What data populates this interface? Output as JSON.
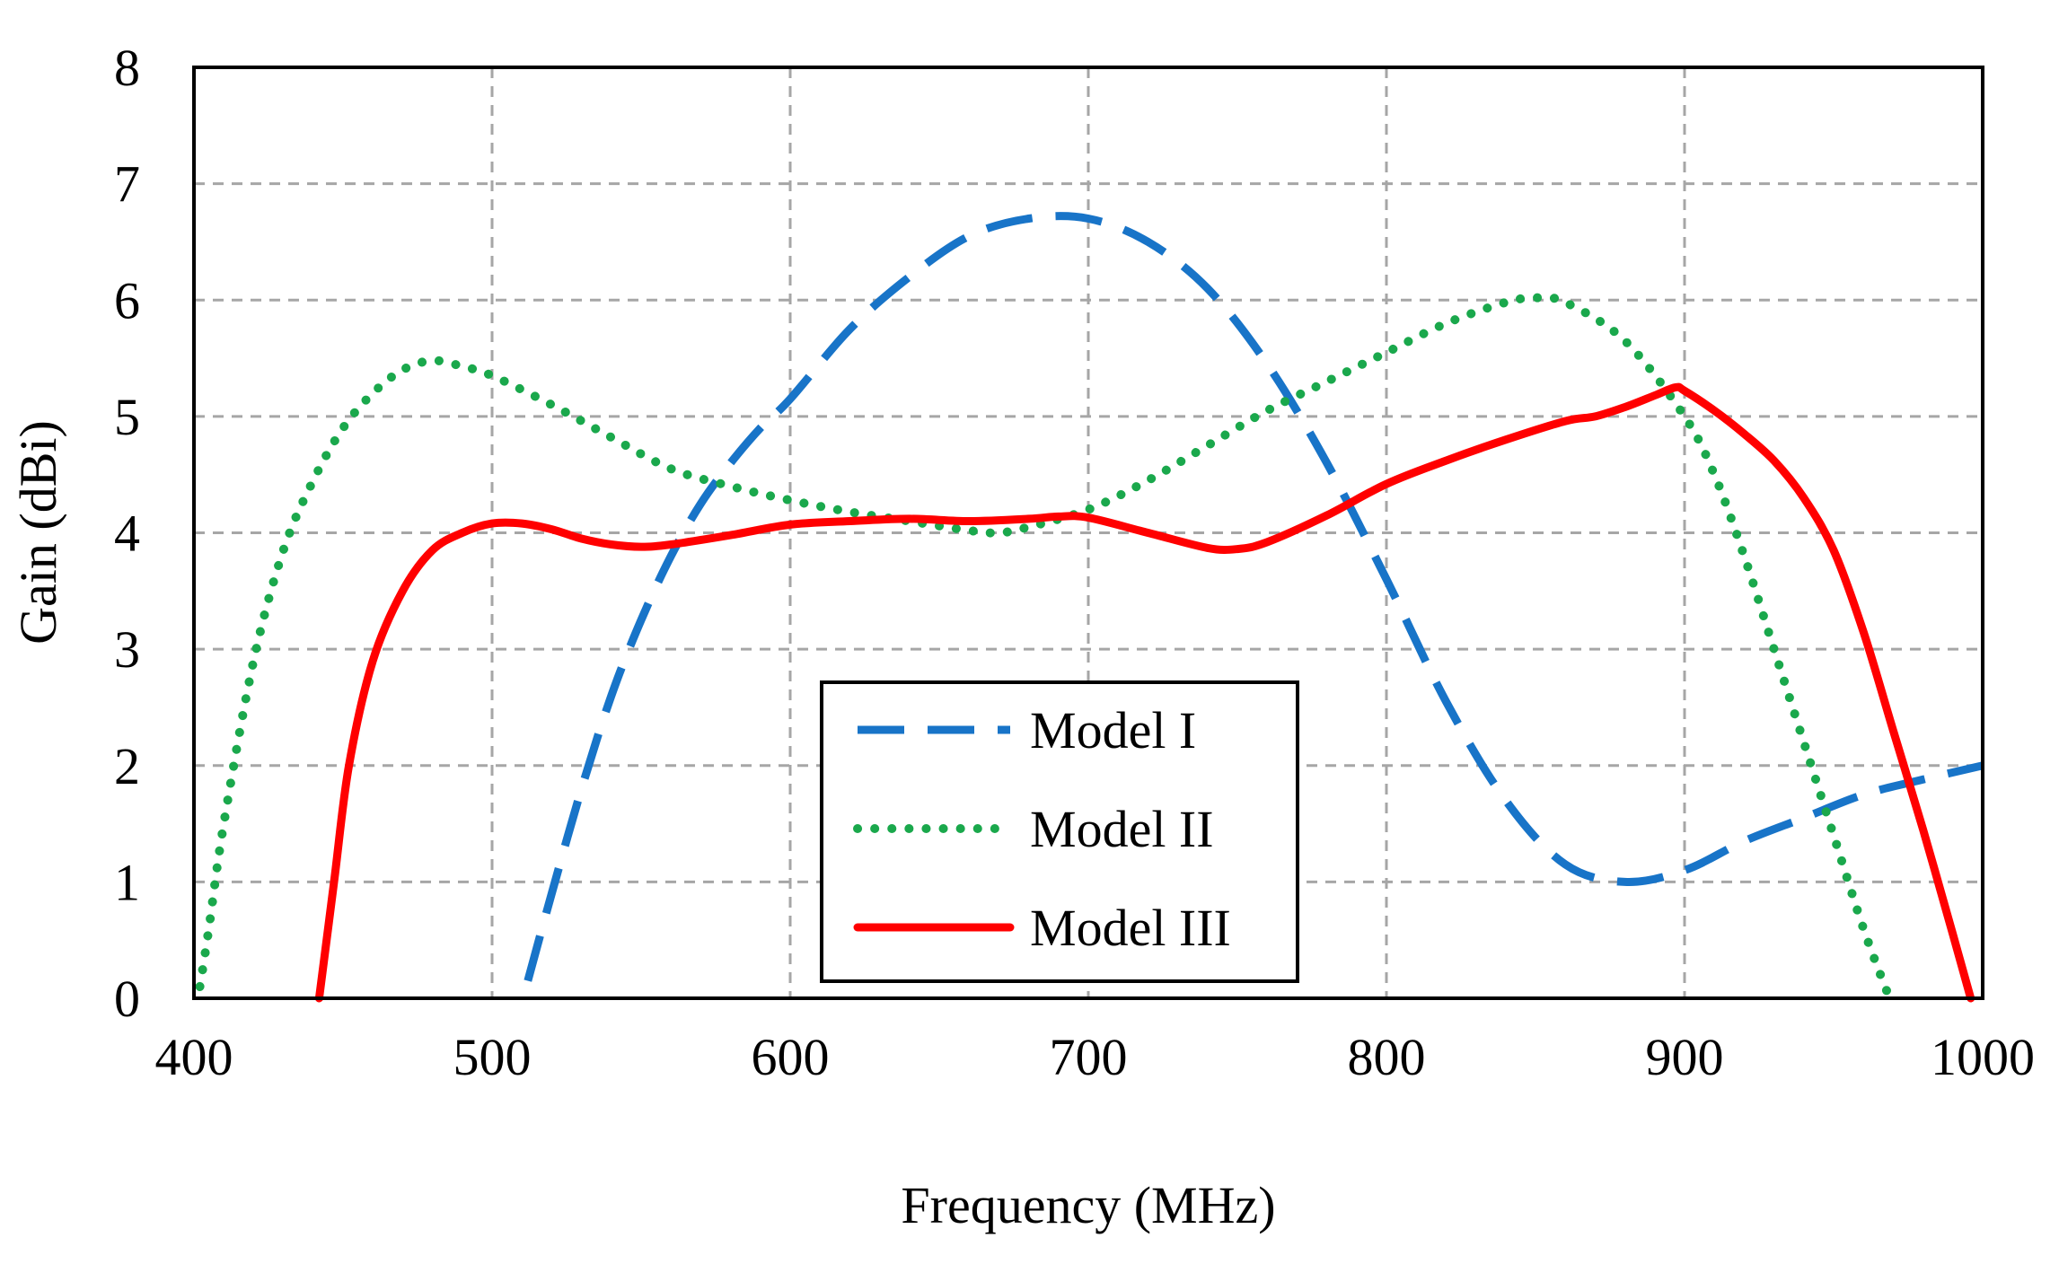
{
  "chart_data": {
    "type": "line",
    "title": "",
    "xlabel": "Frequency (MHz)",
    "ylabel": "Gain (dBi)",
    "xlim": [
      400,
      1000
    ],
    "ylim": [
      0,
      8
    ],
    "x_ticks": [
      400,
      500,
      600,
      700,
      800,
      900,
      1000
    ],
    "y_ticks": [
      0,
      1,
      2,
      3,
      4,
      5,
      6,
      7,
      8
    ],
    "x_tick_labels": [
      "400",
      "500",
      "600",
      "700",
      "800",
      "900",
      "1000"
    ],
    "y_tick_labels": [
      "0",
      "1",
      "2",
      "3",
      "4",
      "5",
      "6",
      "7",
      "8"
    ],
    "grid": true,
    "legend_position": "bottom-center",
    "series": [
      {
        "name": "Model I",
        "color": "#1874c8",
        "style": "dashed",
        "x": [
          512,
          520,
          530,
          540,
          550,
          560,
          570,
          580,
          590,
          600,
          620,
          640,
          660,
          680,
          700,
          720,
          740,
          760,
          780,
          800,
          820,
          840,
          860,
          880,
          900,
          920,
          940,
          960,
          980,
          1000
        ],
        "y": [
          0.15,
          0.9,
          1.8,
          2.6,
          3.25,
          3.8,
          4.25,
          4.6,
          4.9,
          5.15,
          5.75,
          6.2,
          6.55,
          6.7,
          6.7,
          6.5,
          6.1,
          5.45,
          4.6,
          3.6,
          2.55,
          1.7,
          1.15,
          1.0,
          1.1,
          1.35,
          1.55,
          1.75,
          1.88,
          2.0
        ]
      },
      {
        "name": "Model II",
        "color": "#1aa84c",
        "style": "dotted",
        "x": [
          402,
          405,
          410,
          420,
          430,
          440,
          450,
          460,
          470,
          480,
          490,
          500,
          520,
          540,
          560,
          580,
          600,
          620,
          640,
          660,
          670,
          680,
          700,
          720,
          740,
          760,
          780,
          800,
          820,
          840,
          850,
          860,
          880,
          900,
          910,
          920,
          930,
          940,
          950,
          960,
          968
        ],
        "y": [
          0.1,
          0.6,
          1.5,
          2.9,
          3.85,
          4.45,
          4.9,
          5.2,
          5.4,
          5.48,
          5.43,
          5.35,
          5.1,
          4.82,
          4.55,
          4.4,
          4.28,
          4.18,
          4.1,
          4.02,
          4.0,
          4.05,
          4.2,
          4.45,
          4.75,
          5.05,
          5.3,
          5.55,
          5.8,
          5.98,
          6.02,
          5.98,
          5.65,
          5.0,
          4.5,
          3.8,
          3.0,
          2.2,
          1.4,
          0.6,
          0.05
        ]
      },
      {
        "name": "Model III",
        "color": "#ff0000",
        "style": "solid",
        "x": [
          442,
          447,
          452,
          460,
          470,
          480,
          490,
          500,
          510,
          520,
          530,
          540,
          550,
          560,
          580,
          600,
          620,
          640,
          660,
          680,
          690,
          700,
          720,
          740,
          750,
          760,
          780,
          800,
          820,
          840,
          860,
          870,
          880,
          890,
          897,
          900,
          910,
          920,
          930,
          940,
          950,
          960,
          970,
          980,
          990,
          996
        ],
        "y": [
          0.0,
          1.0,
          2.0,
          2.9,
          3.5,
          3.85,
          4.0,
          4.08,
          4.08,
          4.03,
          3.95,
          3.9,
          3.88,
          3.9,
          3.98,
          4.07,
          4.1,
          4.12,
          4.1,
          4.12,
          4.14,
          4.13,
          4.0,
          3.87,
          3.86,
          3.92,
          4.15,
          4.42,
          4.62,
          4.8,
          4.96,
          5.0,
          5.08,
          5.18,
          5.25,
          5.22,
          5.05,
          4.85,
          4.62,
          4.3,
          3.85,
          3.15,
          2.3,
          1.45,
          0.55,
          0.0
        ]
      }
    ]
  }
}
